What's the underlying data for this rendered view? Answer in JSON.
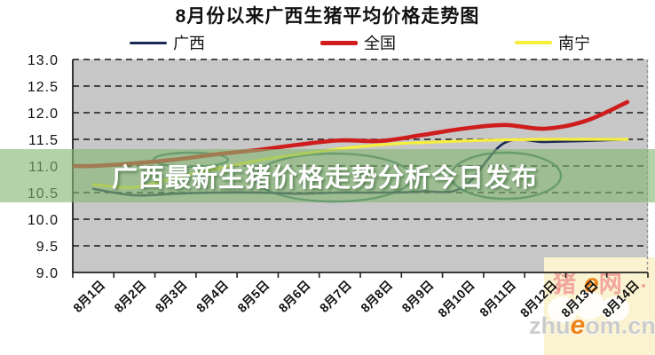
{
  "title": "8月份以来广西生猪平均价格走势图",
  "banner": {
    "text": "广西最新生猪价格走势分析今日发布",
    "bg": "rgba(132,182,115,0.62)",
    "text_color": "#ffffff"
  },
  "legend": [
    {
      "label": "广西",
      "color": "#1b2a55",
      "thickness": 3
    },
    {
      "label": "全国",
      "color": "#cf1d1d",
      "thickness": 5
    },
    {
      "label": "南宁",
      "color": "#f5ef3c",
      "thickness": 4
    }
  ],
  "watermark": {
    "name_prefix": "猪",
    "name_e": "e",
    "name_suffix": "网",
    "url_prefix": "zhu",
    "url_e": "e",
    "url_suffix": "om.cn",
    "bg": "#fbf3cf",
    "accent_color": "#ef8418",
    "name_color": "rgba(235,115,125,0.6)",
    "url_color": "#cccccc"
  },
  "chart_data": {
    "type": "line",
    "title": "8月份以来广西生猪平均价格走势图",
    "categories": [
      "8月1日",
      "8月2日",
      "8月3日",
      "8月4日",
      "8月5日",
      "8月6日",
      "8月7日",
      "8月8日",
      "8月9日",
      "8月10日",
      "8月11日",
      "8月12日",
      "8月13日",
      "8月14日"
    ],
    "series": [
      {
        "name": "广西",
        "color": "#1b2a55",
        "width": 2.6,
        "from_edge": false,
        "values": [
          10.57,
          10.45,
          10.48,
          10.5,
          10.5,
          10.48,
          10.5,
          10.5,
          10.52,
          10.6,
          11.43,
          11.45,
          11.47,
          11.5
        ]
      },
      {
        "name": "全国",
        "color": "#cf1d1d",
        "width": 4.6,
        "from_edge": true,
        "values": [
          11.0,
          11.05,
          11.12,
          11.22,
          11.3,
          11.4,
          11.48,
          11.47,
          11.58,
          11.7,
          11.77,
          11.7,
          11.85,
          12.2
        ]
      },
      {
        "name": "南宁",
        "color": "#f5ef3c",
        "width": 3.2,
        "from_edge": false,
        "values": [
          10.65,
          10.6,
          10.78,
          10.95,
          11.1,
          11.22,
          11.32,
          11.4,
          11.44,
          11.47,
          11.49,
          11.5,
          11.5,
          11.5
        ]
      }
    ],
    "ylabel": "",
    "xlabel": "",
    "ylim": [
      9.0,
      13.0
    ],
    "ytick_step": 0.5,
    "ytick_labels": [
      "13.0",
      "12.5",
      "12.0",
      "11.5",
      "11.0",
      "10.5",
      "10.0",
      "9.5",
      "9.0"
    ],
    "grid": "dashed",
    "plot_bg": "#c7c7c7",
    "legend_position": "top"
  }
}
